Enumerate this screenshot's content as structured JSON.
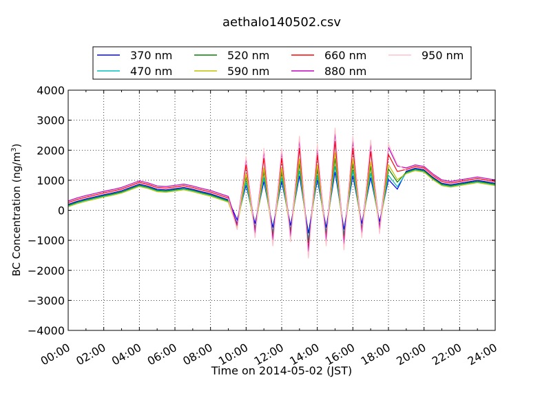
{
  "chart_data": {
    "type": "line",
    "title": "aethalo140502.csv",
    "xlabel": "Time on 2014-05-02 (JST)",
    "ylabel": "BC Concentration (ng/m",
    "ylabel_sup": "3",
    "ylabel_tail": ")",
    "xlim": [
      "00:00",
      "24:00"
    ],
    "ylim": [
      -4000,
      4000
    ],
    "x_ticks": [
      "00:00",
      "02:00",
      "04:00",
      "06:00",
      "08:00",
      "10:00",
      "12:00",
      "14:00",
      "16:00",
      "18:00",
      "20:00",
      "22:00",
      "24:00"
    ],
    "y_ticks": [
      "4000",
      "3000",
      "2000",
      "1000",
      "0",
      "−1000",
      "−2000",
      "−3000",
      "−4000"
    ],
    "grid": true,
    "legend_position": "top",
    "series": [
      {
        "name": "370 nm",
        "color": "#0000ff"
      },
      {
        "name": "470 nm",
        "color": "#00bfbf"
      },
      {
        "name": "520 nm",
        "color": "#008000"
      },
      {
        "name": "590 nm",
        "color": "#bfbf00"
      },
      {
        "name": "660 nm",
        "color": "#ff0000"
      },
      {
        "name": "880 nm",
        "color": "#bf00bf"
      },
      {
        "name": "950 nm",
        "color": "#ffc0cb"
      }
    ],
    "x_hours": [
      0,
      0.5,
      1,
      1.5,
      2,
      2.5,
      3,
      3.5,
      4,
      4.5,
      5,
      5.5,
      6,
      6.5,
      7,
      7.5,
      8,
      8.5,
      9,
      9.5,
      10,
      10.5,
      11,
      11.5,
      12,
      12.5,
      13,
      13.5,
      14,
      14.5,
      15,
      15.5,
      16,
      16.5,
      17,
      17.5,
      18,
      18.5,
      19,
      19.5,
      20,
      20.5,
      21,
      21.5,
      22,
      22.5,
      23,
      23.5,
      24
    ],
    "reference_y": [
      200,
      300,
      380,
      450,
      520,
      580,
      650,
      760,
      870,
      800,
      700,
      680,
      720,
      760,
      700,
      620,
      550,
      450,
      350,
      -500,
      1300,
      -700,
      1500,
      -900,
      1500,
      -800,
      1800,
      -1200,
      1600,
      -900,
      2000,
      -1000,
      1800,
      -700,
      1700,
      -600,
      1600,
      1100,
      1300,
      1400,
      1350,
      1100,
      900,
      850,
      900,
      950,
      1000,
      950,
      900
    ],
    "series_offsets": [
      0,
      -50,
      -30,
      -80,
      60,
      110,
      30
    ]
  }
}
